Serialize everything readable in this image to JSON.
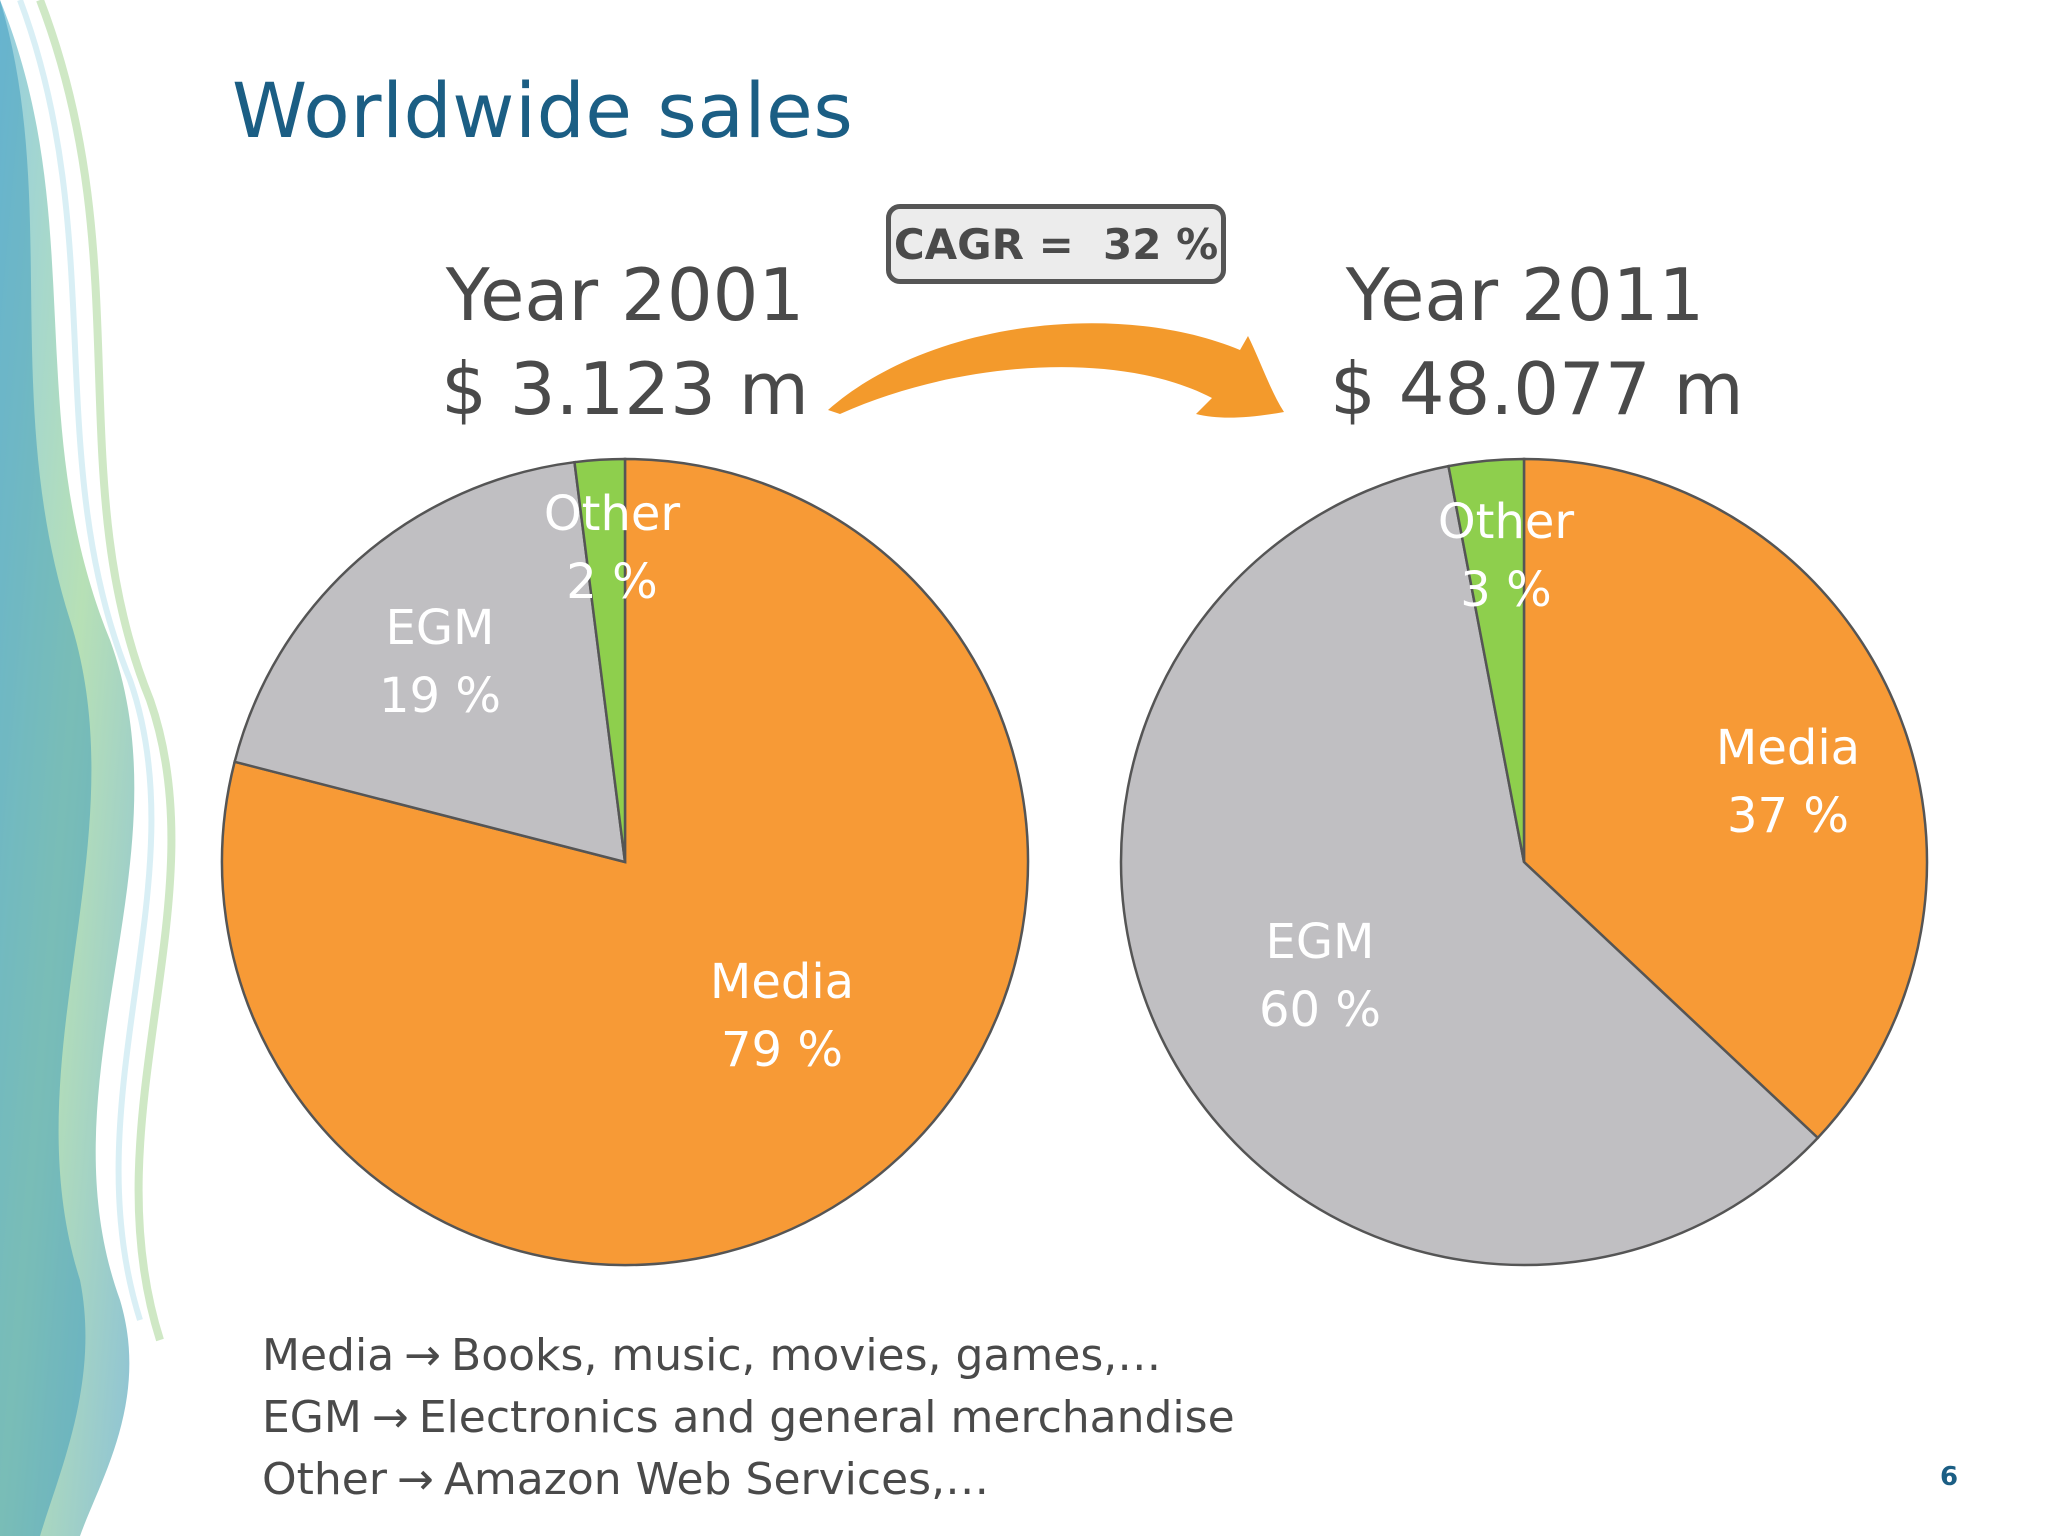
{
  "slide": {
    "title": "Worldwide sales",
    "cagr_label": "CAGR =  32 %",
    "page_number": "6",
    "legend": [
      {
        "term": "Media",
        "arrow": "→",
        "description": "Books, music, movies, games,…"
      },
      {
        "term": "EGM",
        "arrow": "→",
        "description": "Electronics and general merchandise"
      },
      {
        "term": "Other",
        "arrow": "→",
        "description": "Amazon Web Services,…"
      }
    ]
  },
  "colors": {
    "media": "#f79a36",
    "egm": "#c0bfc2",
    "other": "#8ecf4d",
    "title": "#1b5e84",
    "label_text": "#ffffff",
    "arrow": "#f39a2c"
  },
  "chart_data": [
    {
      "type": "pie",
      "title": "Year 2001",
      "subtitle": "$ 3.123 m",
      "slices": [
        {
          "label": "Media",
          "value": 79,
          "value_label": "79 %"
        },
        {
          "label": "EGM",
          "value": 19,
          "value_label": "19 %"
        },
        {
          "label": "Other",
          "value": 2,
          "value_label": "2 %"
        }
      ]
    },
    {
      "type": "pie",
      "title": "Year 2011",
      "subtitle": "$ 48.077 m",
      "slices": [
        {
          "label": "Media",
          "value": 37,
          "value_label": "37 %"
        },
        {
          "label": "EGM",
          "value": 60,
          "value_label": "60 %"
        },
        {
          "label": "Other",
          "value": 3,
          "value_label": "3 %"
        }
      ]
    }
  ]
}
